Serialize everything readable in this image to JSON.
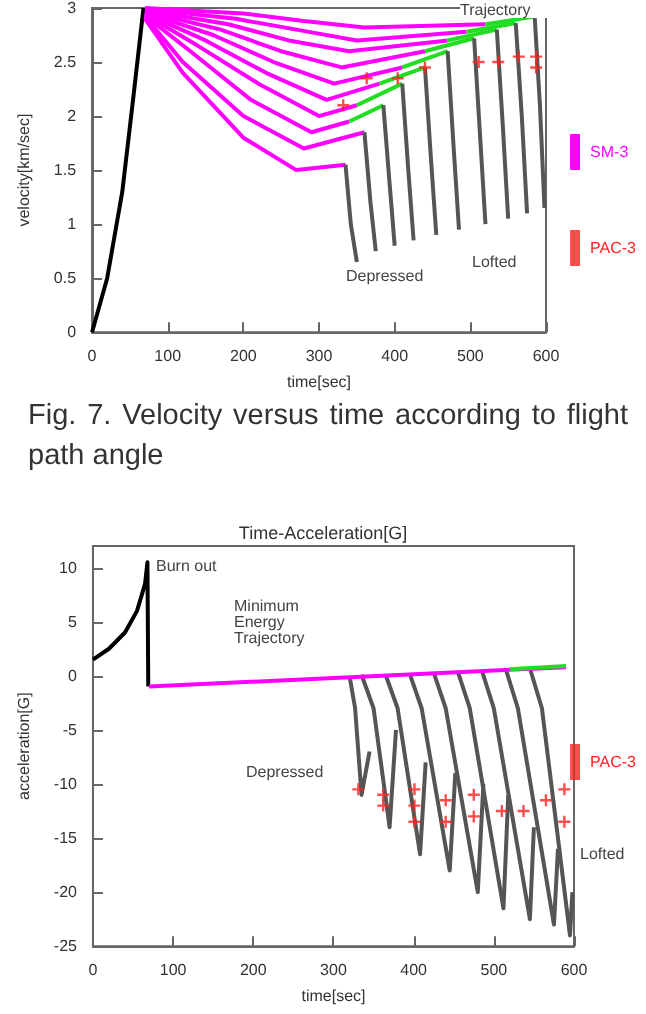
{
  "chart_data": [
    {
      "type": "line",
      "xlabel": "time[sec]",
      "ylabel": "velocity[km/sec]",
      "xlim": [
        0,
        600
      ],
      "xticks": [
        0,
        100,
        200,
        300,
        400,
        500,
        600
      ],
      "ylim": [
        0,
        3
      ],
      "yticks": [
        0,
        0.5,
        1,
        1.5,
        2,
        2.5,
        3
      ],
      "grid": false,
      "legend": "right",
      "marker": "none",
      "annotations": [
        "Trajectory",
        "Depressed",
        "Lofted",
        "Fig. 7. Velocity versus time according to flight path angle"
      ],
      "series": [
        {
          "color": "#000000",
          "x": [
            0,
            20,
            40,
            55,
            68
          ],
          "values": [
            0,
            0.5,
            1.3,
            2.2,
            3.0
          ]
        },
        {
          "name": "SM-3",
          "color": "#ff00ff",
          "x": [
            70,
            120,
            200,
            270,
            335
          ],
          "values": [
            2.9,
            2.4,
            1.8,
            1.5,
            1.55
          ]
        },
        {
          "color": "#555555",
          "x": [
            335,
            342,
            350
          ],
          "values": [
            1.55,
            1.0,
            0.65
          ]
        },
        {
          "color": "#ff00ff",
          "x": [
            70,
            120,
            200,
            280,
            360
          ],
          "values": [
            2.92,
            2.5,
            2.0,
            1.7,
            1.85
          ]
        },
        {
          "color": "#555555",
          "x": [
            360,
            368,
            375
          ],
          "values": [
            1.85,
            1.2,
            0.75
          ]
        },
        {
          "color": "#ff00ff",
          "x": [
            70,
            130,
            210,
            290,
            340
          ],
          "values": [
            2.93,
            2.6,
            2.15,
            1.85,
            1.95
          ]
        },
        {
          "color": "#22dd22",
          "x": [
            340,
            385
          ],
          "values": [
            1.95,
            2.1
          ]
        },
        {
          "color": "#555555",
          "x": [
            385,
            393,
            400
          ],
          "values": [
            2.1,
            1.4,
            0.8
          ]
        },
        {
          "color": "#ff00ff",
          "x": [
            70,
            140,
            220,
            300,
            350
          ],
          "values": [
            2.94,
            2.65,
            2.3,
            2.0,
            2.1
          ]
        },
        {
          "color": "#22dd22",
          "x": [
            350,
            410
          ],
          "values": [
            2.1,
            2.3
          ]
        },
        {
          "color": "#555555",
          "x": [
            410,
            418,
            425
          ],
          "values": [
            2.3,
            1.5,
            0.85
          ]
        },
        {
          "color": "#ff00ff",
          "x": [
            70,
            150,
            230,
            310,
            380
          ],
          "values": [
            2.95,
            2.7,
            2.4,
            2.15,
            2.3
          ]
        },
        {
          "color": "#22dd22",
          "x": [
            380,
            440
          ],
          "values": [
            2.3,
            2.45
          ]
        },
        {
          "color": "#555555",
          "x": [
            440,
            448,
            455
          ],
          "values": [
            2.45,
            1.6,
            0.9
          ]
        },
        {
          "color": "#ff00ff",
          "x": [
            70,
            160,
            240,
            320,
            410
          ],
          "values": [
            2.96,
            2.75,
            2.5,
            2.3,
            2.45
          ]
        },
        {
          "color": "#22dd22",
          "x": [
            410,
            470
          ],
          "values": [
            2.45,
            2.6
          ]
        },
        {
          "color": "#555555",
          "x": [
            470,
            478,
            485
          ],
          "values": [
            2.6,
            1.7,
            0.95
          ]
        },
        {
          "color": "#ff00ff",
          "x": [
            70,
            170,
            250,
            330,
            440
          ],
          "values": [
            2.97,
            2.8,
            2.6,
            2.45,
            2.6
          ]
        },
        {
          "color": "#22dd22",
          "x": [
            440,
            505
          ],
          "values": [
            2.6,
            2.72
          ]
        },
        {
          "color": "#555555",
          "x": [
            505,
            513,
            520
          ],
          "values": [
            2.72,
            1.8,
            1.0
          ]
        },
        {
          "color": "#ff00ff",
          "x": [
            70,
            180,
            260,
            340,
            470
          ],
          "values": [
            2.98,
            2.85,
            2.7,
            2.6,
            2.7
          ]
        },
        {
          "color": "#22dd22",
          "x": [
            470,
            535
          ],
          "values": [
            2.7,
            2.8
          ]
        },
        {
          "color": "#555555",
          "x": [
            535,
            543,
            550
          ],
          "values": [
            2.8,
            1.9,
            1.05
          ]
        },
        {
          "color": "#ff00ff",
          "x": [
            70,
            190,
            270,
            350,
            495
          ],
          "values": [
            2.99,
            2.9,
            2.8,
            2.7,
            2.78
          ]
        },
        {
          "color": "#22dd22",
          "x": [
            495,
            560
          ],
          "values": [
            2.78,
            2.86
          ]
        },
        {
          "color": "#555555",
          "x": [
            560,
            568,
            575
          ],
          "values": [
            2.86,
            2.0,
            1.1
          ]
        },
        {
          "color": "#ff00ff",
          "x": [
            70,
            200,
            280,
            360,
            520
          ],
          "values": [
            3.0,
            2.95,
            2.88,
            2.82,
            2.85
          ]
        },
        {
          "color": "#22dd22",
          "x": [
            520,
            585
          ],
          "values": [
            2.85,
            2.92
          ]
        },
        {
          "color": "#555555",
          "x": [
            585,
            592,
            598
          ],
          "values": [
            2.92,
            2.1,
            1.15
          ]
        },
        {
          "name": "PAC-3",
          "type": "scatter",
          "marker": "cross",
          "color": "#ff2020",
          "x": [
            332,
            363,
            404,
            440,
            511,
            537,
            564,
            587,
            587
          ],
          "values": [
            2.1,
            2.35,
            2.35,
            2.45,
            2.5,
            2.5,
            2.55,
            2.55,
            2.45
          ]
        }
      ]
    },
    {
      "type": "line",
      "title": "Time-Acceleration[G]",
      "xlabel": "time[sec]",
      "ylabel": "acceleration[G]",
      "xlim": [
        0,
        600
      ],
      "xticks": [
        0,
        100,
        200,
        300,
        400,
        500,
        600
      ],
      "ylim": [
        -25,
        12
      ],
      "yticks": [
        -25,
        -20,
        -15,
        -10,
        -5,
        0,
        5,
        10
      ],
      "grid": false,
      "legend": "right",
      "marker": "none",
      "annotations": [
        "Burn out",
        "Minimum Energy Trajectory",
        "Depressed",
        "Lofted"
      ],
      "series": [
        {
          "color": "#000000",
          "x": [
            0,
            20,
            40,
            55,
            65,
            68,
            69
          ],
          "values": [
            1.5,
            2.5,
            4,
            6,
            8.5,
            10.5,
            -1
          ]
        },
        {
          "color": "#555555",
          "x": [
            320,
            327,
            335,
            345
          ],
          "values": [
            0,
            -3,
            -11,
            -7
          ]
        },
        {
          "color": "#555555",
          "x": [
            335,
            350,
            370,
            378
          ],
          "values": [
            0.1,
            -3,
            -14,
            -5
          ]
        },
        {
          "color": "#555555",
          "x": [
            365,
            380,
            408,
            415
          ],
          "values": [
            0.1,
            -3,
            -16.5,
            -8
          ]
        },
        {
          "color": "#555555",
          "x": [
            395,
            410,
            445,
            452
          ],
          "values": [
            0.2,
            -3,
            -18,
            -9
          ]
        },
        {
          "color": "#555555",
          "x": [
            425,
            440,
            480,
            487
          ],
          "values": [
            0.3,
            -3,
            -20,
            -10
          ]
        },
        {
          "color": "#555555",
          "x": [
            455,
            470,
            512,
            518
          ],
          "values": [
            0.4,
            -3,
            -21.5,
            -11
          ]
        },
        {
          "color": "#555555",
          "x": [
            485,
            500,
            545,
            550
          ],
          "values": [
            0.5,
            -3,
            -22.5,
            -14
          ]
        },
        {
          "color": "#555555",
          "x": [
            515,
            530,
            575,
            580
          ],
          "values": [
            0.6,
            -3,
            -23,
            -16
          ]
        },
        {
          "color": "#555555",
          "x": [
            545,
            560,
            595,
            598
          ],
          "values": [
            0.7,
            -3,
            -24,
            -20
          ]
        },
        {
          "color": "#ff00ff",
          "x": [
            70,
            590
          ],
          "values": [
            -1,
            0.8
          ]
        },
        {
          "color": "#22dd22",
          "x": [
            520,
            590
          ],
          "values": [
            0.6,
            0.9
          ]
        },
        {
          "name": "PAC-3",
          "type": "scatter",
          "marker": "cross",
          "color": "#ff2020",
          "x": [
            331,
            362,
            362,
            401,
            401,
            401,
            440,
            440,
            475,
            475,
            510,
            537,
            565,
            588,
            588
          ],
          "values": [
            -10.5,
            -11,
            -12,
            -10.5,
            -12,
            -13.5,
            -11.5,
            -13.5,
            -11,
            -13,
            -12.5,
            -12.5,
            -11.5,
            -10.5,
            -13.5
          ]
        }
      ]
    }
  ]
}
